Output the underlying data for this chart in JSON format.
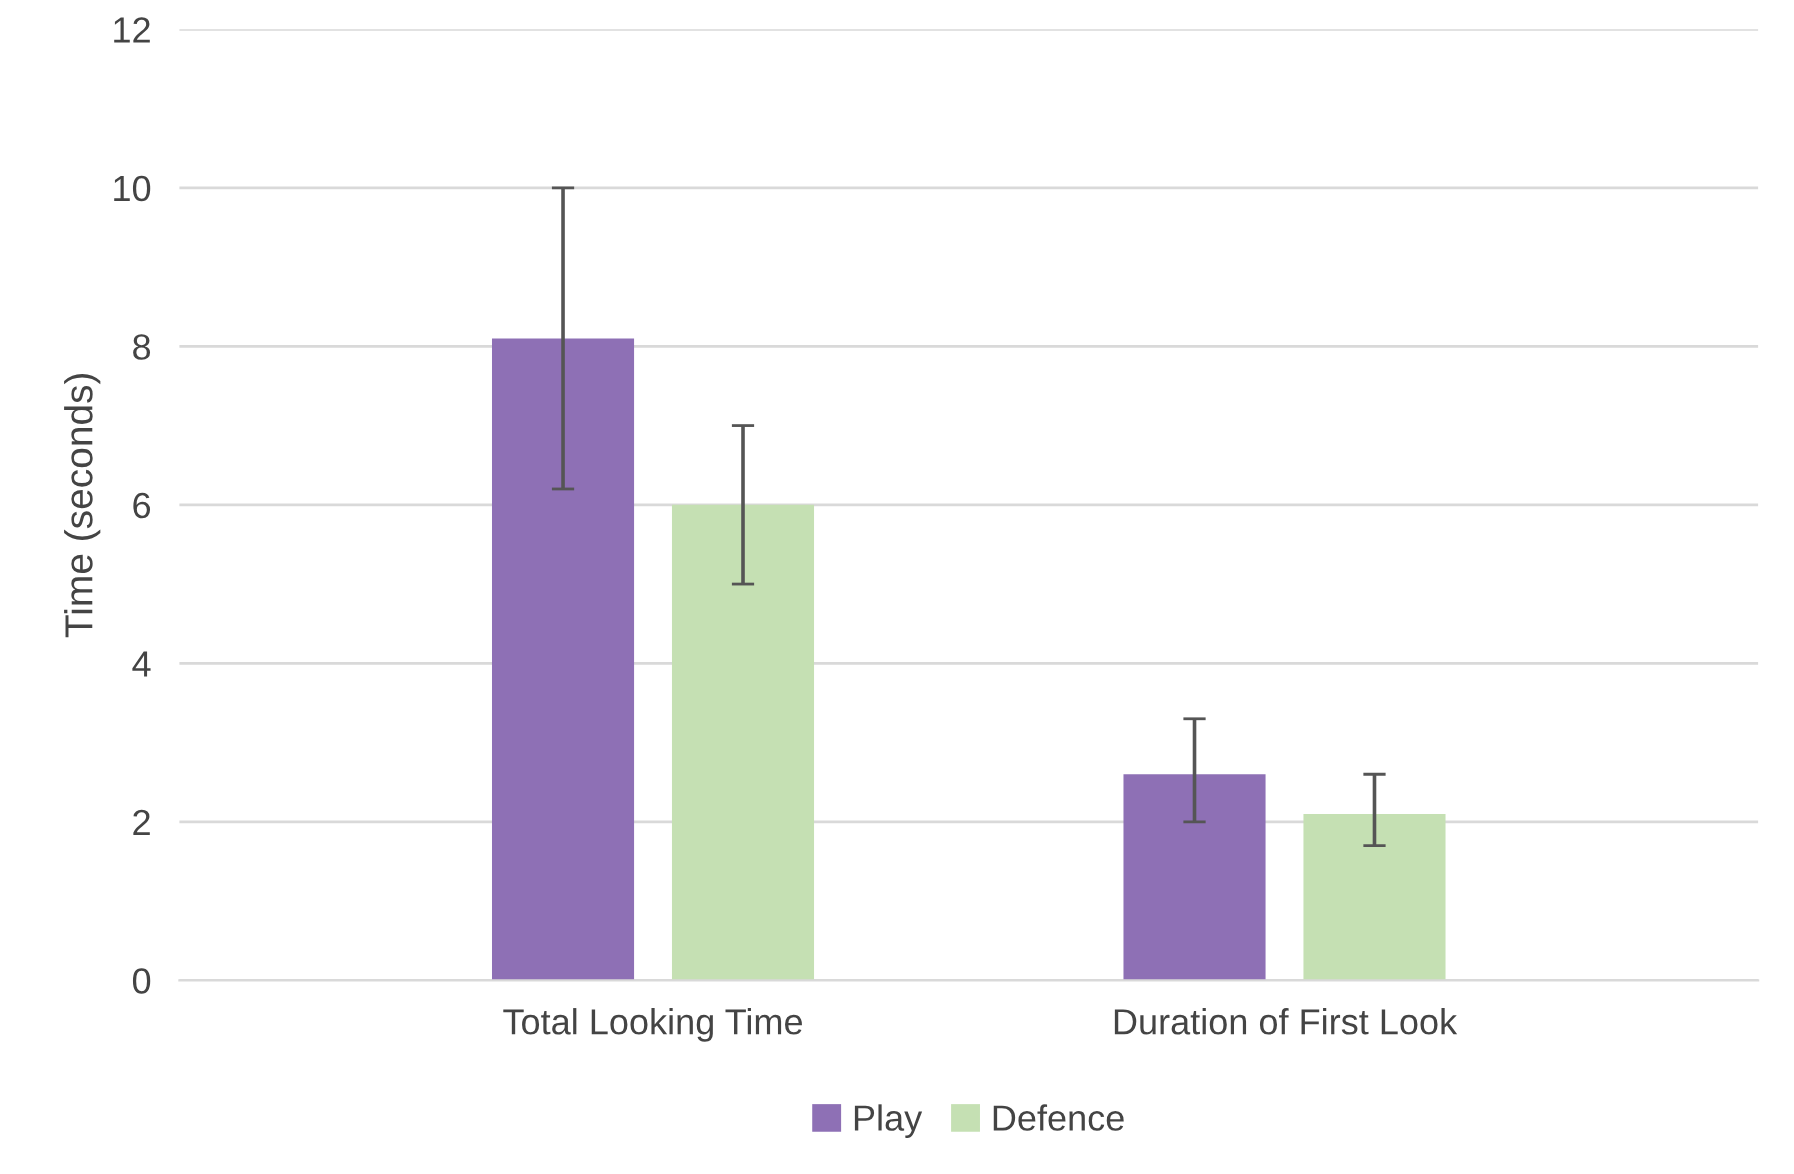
{
  "chart_data": {
    "type": "bar",
    "ylabel": "Time (seconds)",
    "categories": [
      "Total Looking Time",
      "Duration of First Look"
    ],
    "series": [
      {
        "name": "Play",
        "color": "#8e70b5",
        "values": [
          8.1,
          2.6
        ],
        "errors": [
          [
            6.2,
            10.0
          ],
          [
            2.0,
            3.3
          ]
        ]
      },
      {
        "name": "Defence",
        "color": "#c5e0b3",
        "values": [
          6.0,
          2.1
        ],
        "errors": [
          [
            5.0,
            7.0
          ],
          [
            1.7,
            2.6
          ]
        ]
      }
    ],
    "ylim": [
      0,
      12
    ],
    "yticks": [
      0,
      2,
      4,
      6,
      8,
      10,
      12
    ],
    "grid": "y",
    "legend": "bottom"
  }
}
